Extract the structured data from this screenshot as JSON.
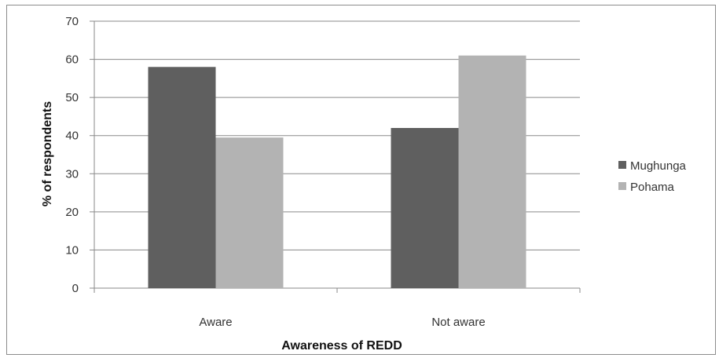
{
  "chart_data": {
    "type": "bar",
    "title": "",
    "xlabel": "Awareness of REDD",
    "ylabel": "% of respondents",
    "categories": [
      "Aware",
      "Not aware"
    ],
    "series": [
      {
        "name": "Mughunga",
        "values": [
          58,
          42
        ],
        "color": "#5f5f5f"
      },
      {
        "name": "Pohama",
        "values": [
          39.5,
          61
        ],
        "color": "#b3b3b3"
      }
    ],
    "ylim": [
      0,
      70
    ],
    "yticks": [
      0,
      10,
      20,
      30,
      40,
      50,
      60,
      70
    ],
    "grid": true,
    "legend_position": "right"
  }
}
